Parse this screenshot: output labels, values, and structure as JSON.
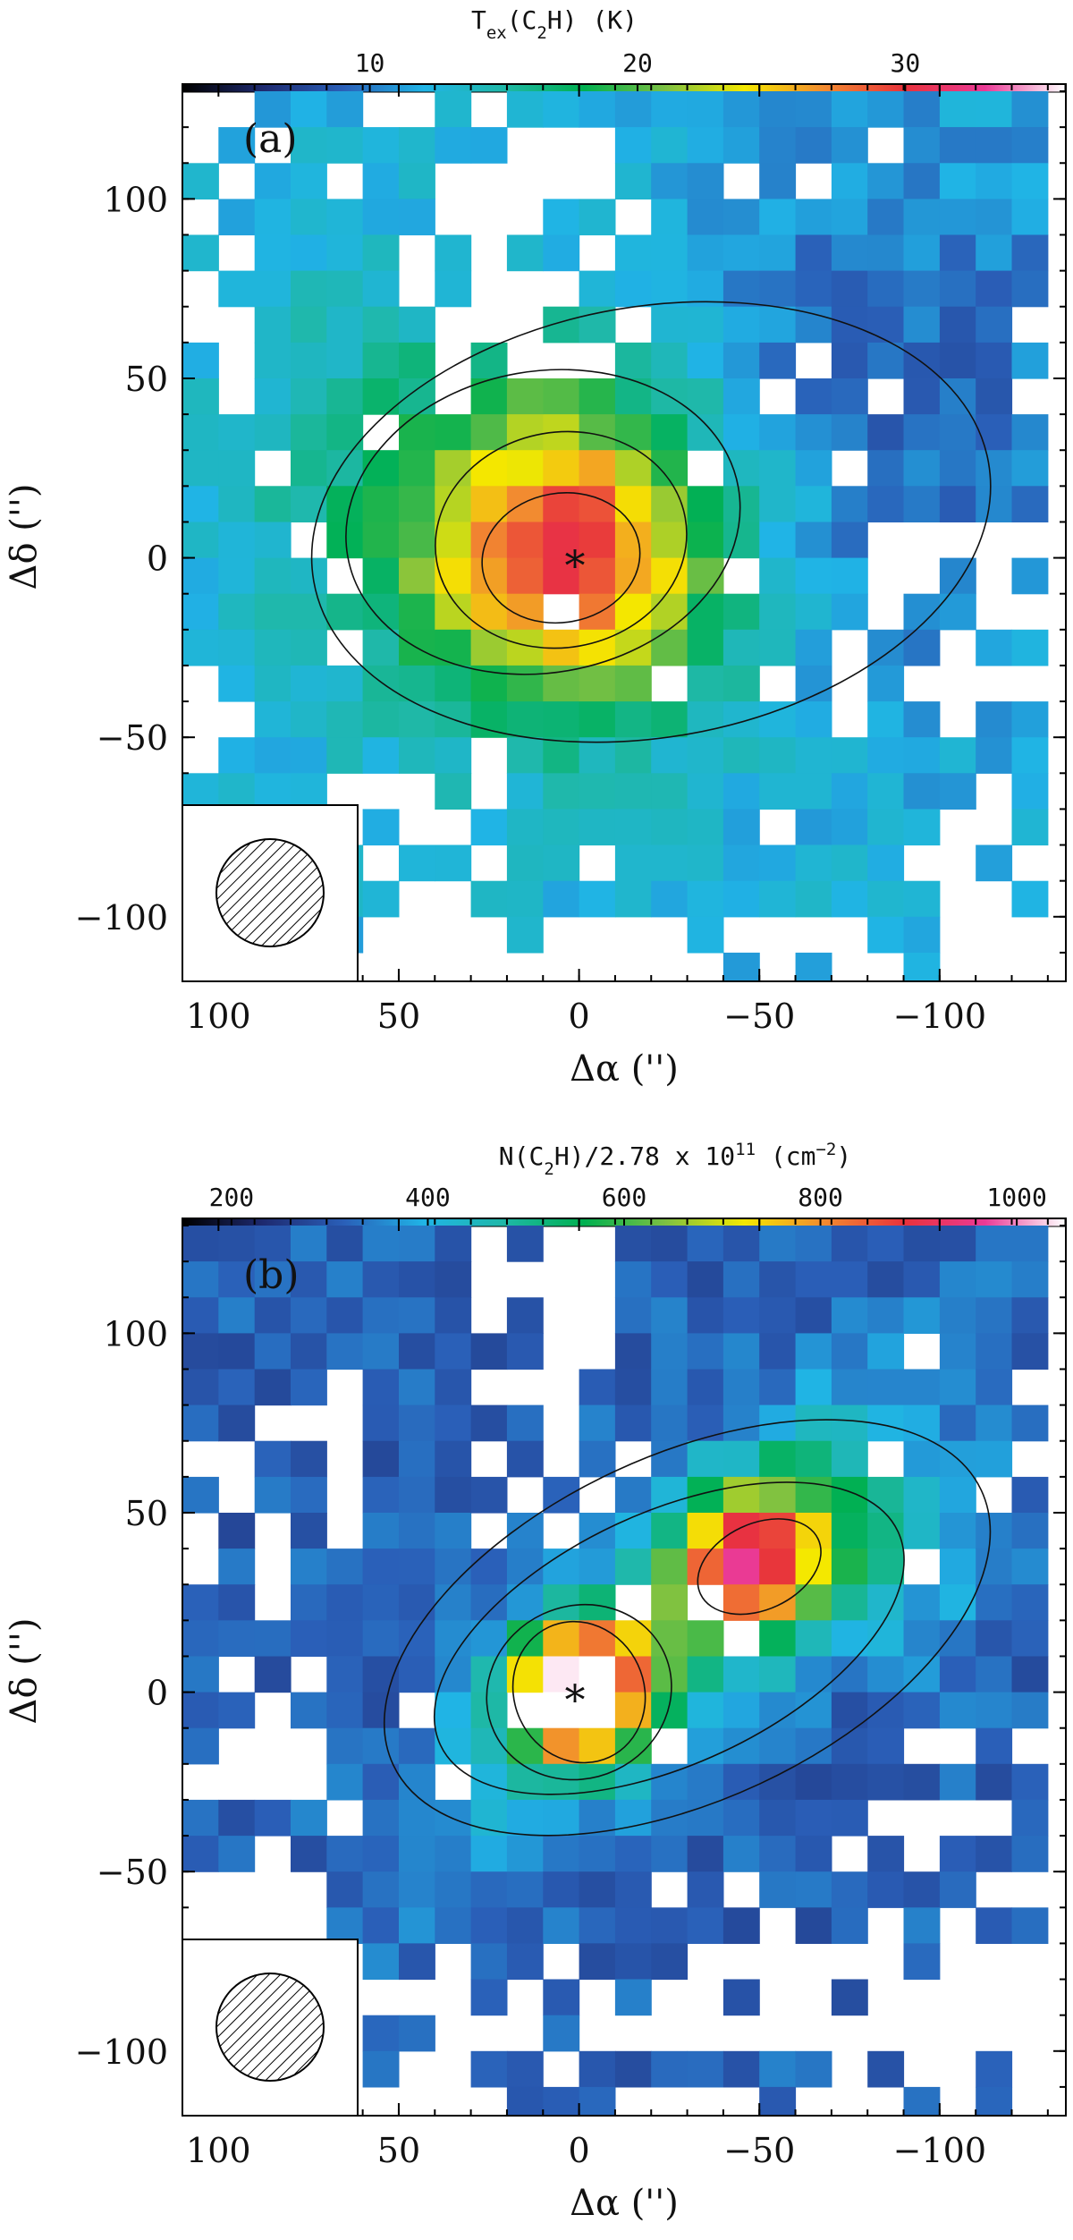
{
  "chart_data": [
    {
      "type": "heatmap",
      "panel_label": "(a)",
      "colorbar": {
        "label_parts": [
          "T",
          "ex",
          "(C",
          "2",
          "H) (K)"
        ],
        "ticks": [
          10,
          20,
          30
        ],
        "range": [
          3,
          36
        ]
      },
      "x_axis": {
        "label": "Δα ('')",
        "ticks": [
          100,
          50,
          0,
          -50,
          -100
        ],
        "range": [
          110,
          -135
        ]
      },
      "y_axis": {
        "label": "Δδ ('')",
        "ticks": [
          100,
          50,
          0,
          -50,
          -100
        ],
        "range": [
          -118,
          132
        ]
      },
      "grid_spacing": 10,
      "center_marker": "*",
      "beam_inset": "hatched-circle",
      "peak_value_K": 27,
      "colormap": [
        "#000000",
        "#1e2a70",
        "#2a5fb8",
        "#20b4e6",
        "#1fb8a8",
        "#00b050",
        "#7bc043",
        "#f4e800",
        "#f28a30",
        "#e8323c",
        "#ea3a96",
        "#ffffff"
      ]
    },
    {
      "type": "heatmap",
      "panel_label": "(b)",
      "colorbar": {
        "label_parts": [
          "N(C",
          "2",
          "H)/2.78 x 10",
          "11",
          " (cm",
          "−2",
          ")"
        ],
        "ticks": [
          200,
          400,
          600,
          800,
          1000
        ],
        "range": [
          150,
          1050
        ]
      },
      "x_axis": {
        "label": "Δα ('')",
        "ticks": [
          100,
          50,
          0,
          -50,
          -100
        ],
        "range": [
          110,
          -135
        ]
      },
      "y_axis": {
        "label": "Δδ ('')",
        "ticks": [
          100,
          50,
          0,
          -50,
          -100
        ],
        "range": [
          -118,
          132
        ]
      },
      "grid_spacing": 10,
      "center_marker": "*",
      "beam_inset": "hatched-circle",
      "peak_value": 1000,
      "colormap": [
        "#000000",
        "#1e2a70",
        "#2a5fb8",
        "#20b4e6",
        "#1fb8a8",
        "#00b050",
        "#7bc043",
        "#f4e800",
        "#f28a30",
        "#e8323c",
        "#ea3a96",
        "#ffffff"
      ]
    }
  ]
}
